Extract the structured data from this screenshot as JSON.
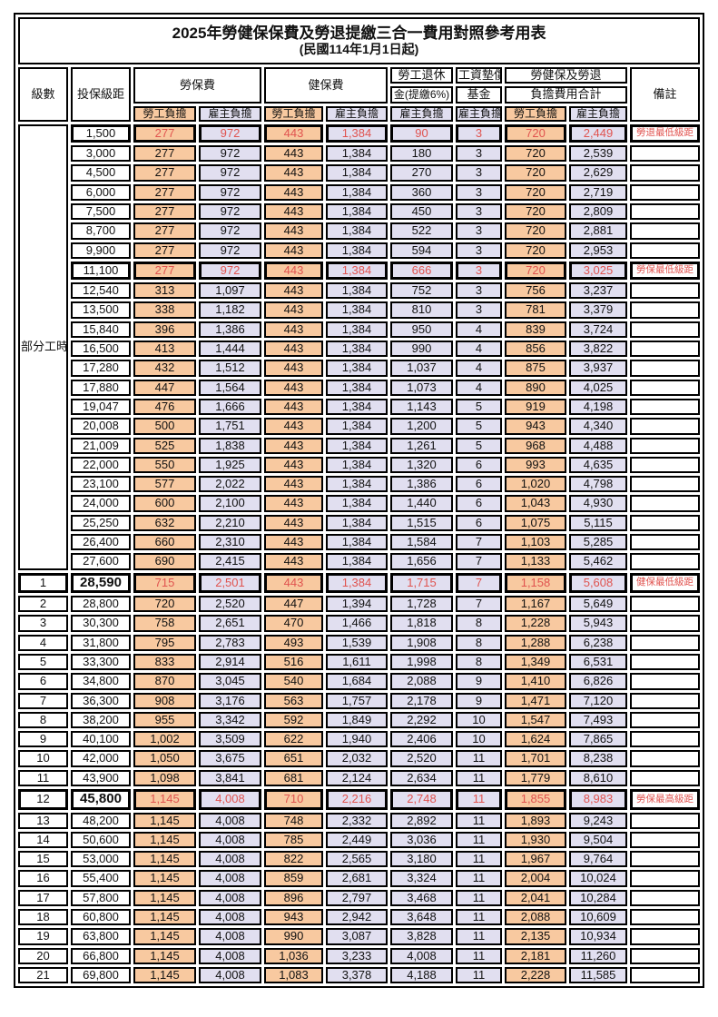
{
  "title": "2025年勞健保保費及勞退提繳三合一費用對照參考用表",
  "subtitle": "(民國114年1月1日起)",
  "header": {
    "level": "級數",
    "bracket": "投保級距",
    "labor_group": "勞保費",
    "health_group": "健保費",
    "pension_line1": "勞工退休",
    "pension_line2": "金(提繳6%)",
    "wage_fund_line1": "工資墊償",
    "wage_fund_line2": "基金",
    "total_line1": "勞健保及勞退",
    "total_line2": "負擔費用合計",
    "remark": "備註",
    "employee_share": "勞工負擔",
    "employer_share": "雇主負擔"
  },
  "part_time_label": "部分工時",
  "colors": {
    "employee_bg": "#F8C9A0",
    "employer_bg": "#E1DFF0",
    "highlight_red": "#E0534F",
    "border": "#000000"
  },
  "row_field_order": [
    "level",
    "bracket",
    "labor_employee",
    "labor_employer",
    "health_employee",
    "health_employer",
    "pension_employer",
    "wage_fund_employer",
    "total_employee",
    "total_employer",
    "remark",
    "flags(r=red,b=bold-bracket)"
  ],
  "rows": [
    [
      "",
      "1,500",
      "277",
      "972",
      "443",
      "1,384",
      "90",
      "3",
      "720",
      "2,449",
      "勞退最低級距",
      "r"
    ],
    [
      "",
      "3,000",
      "277",
      "972",
      "443",
      "1,384",
      "180",
      "3",
      "720",
      "2,539",
      "",
      ""
    ],
    [
      "",
      "4,500",
      "277",
      "972",
      "443",
      "1,384",
      "270",
      "3",
      "720",
      "2,629",
      "",
      ""
    ],
    [
      "",
      "6,000",
      "277",
      "972",
      "443",
      "1,384",
      "360",
      "3",
      "720",
      "2,719",
      "",
      ""
    ],
    [
      "",
      "7,500",
      "277",
      "972",
      "443",
      "1,384",
      "450",
      "3",
      "720",
      "2,809",
      "",
      ""
    ],
    [
      "",
      "8,700",
      "277",
      "972",
      "443",
      "1,384",
      "522",
      "3",
      "720",
      "2,881",
      "",
      ""
    ],
    [
      "",
      "9,900",
      "277",
      "972",
      "443",
      "1,384",
      "594",
      "3",
      "720",
      "2,953",
      "",
      ""
    ],
    [
      "",
      "11,100",
      "277",
      "972",
      "443",
      "1,384",
      "666",
      "3",
      "720",
      "3,025",
      "勞保最低級距",
      "r"
    ],
    [
      "",
      "12,540",
      "313",
      "1,097",
      "443",
      "1,384",
      "752",
      "3",
      "756",
      "3,237",
      "",
      ""
    ],
    [
      "",
      "13,500",
      "338",
      "1,182",
      "443",
      "1,384",
      "810",
      "3",
      "781",
      "3,379",
      "",
      ""
    ],
    [
      "",
      "15,840",
      "396",
      "1,386",
      "443",
      "1,384",
      "950",
      "4",
      "839",
      "3,724",
      "",
      ""
    ],
    [
      "",
      "16,500",
      "413",
      "1,444",
      "443",
      "1,384",
      "990",
      "4",
      "856",
      "3,822",
      "",
      ""
    ],
    [
      "",
      "17,280",
      "432",
      "1,512",
      "443",
      "1,384",
      "1,037",
      "4",
      "875",
      "3,937",
      "",
      ""
    ],
    [
      "",
      "17,880",
      "447",
      "1,564",
      "443",
      "1,384",
      "1,073",
      "4",
      "890",
      "4,025",
      "",
      ""
    ],
    [
      "",
      "19,047",
      "476",
      "1,666",
      "443",
      "1,384",
      "1,143",
      "5",
      "919",
      "4,198",
      "",
      ""
    ],
    [
      "",
      "20,008",
      "500",
      "1,751",
      "443",
      "1,384",
      "1,200",
      "5",
      "943",
      "4,340",
      "",
      ""
    ],
    [
      "",
      "21,009",
      "525",
      "1,838",
      "443",
      "1,384",
      "1,261",
      "5",
      "968",
      "4,488",
      "",
      ""
    ],
    [
      "",
      "22,000",
      "550",
      "1,925",
      "443",
      "1,384",
      "1,320",
      "6",
      "993",
      "4,635",
      "",
      ""
    ],
    [
      "",
      "23,100",
      "577",
      "2,022",
      "443",
      "1,384",
      "1,386",
      "6",
      "1,020",
      "4,798",
      "",
      ""
    ],
    [
      "",
      "24,000",
      "600",
      "2,100",
      "443",
      "1,384",
      "1,440",
      "6",
      "1,043",
      "4,930",
      "",
      ""
    ],
    [
      "",
      "25,250",
      "632",
      "2,210",
      "443",
      "1,384",
      "1,515",
      "6",
      "1,075",
      "5,115",
      "",
      ""
    ],
    [
      "",
      "26,400",
      "660",
      "2,310",
      "443",
      "1,384",
      "1,584",
      "7",
      "1,103",
      "5,285",
      "",
      ""
    ],
    [
      "",
      "27,600",
      "690",
      "2,415",
      "443",
      "1,384",
      "1,656",
      "7",
      "1,133",
      "5,462",
      "",
      ""
    ],
    [
      "1",
      "28,590",
      "715",
      "2,501",
      "443",
      "1,384",
      "1,715",
      "7",
      "1,158",
      "5,608",
      "健保最低級距",
      "rb"
    ],
    [
      "2",
      "28,800",
      "720",
      "2,520",
      "447",
      "1,394",
      "1,728",
      "7",
      "1,167",
      "5,649",
      "",
      ""
    ],
    [
      "3",
      "30,300",
      "758",
      "2,651",
      "470",
      "1,466",
      "1,818",
      "8",
      "1,228",
      "5,943",
      "",
      ""
    ],
    [
      "4",
      "31,800",
      "795",
      "2,783",
      "493",
      "1,539",
      "1,908",
      "8",
      "1,288",
      "6,238",
      "",
      ""
    ],
    [
      "5",
      "33,300",
      "833",
      "2,914",
      "516",
      "1,611",
      "1,998",
      "8",
      "1,349",
      "6,531",
      "",
      ""
    ],
    [
      "6",
      "34,800",
      "870",
      "3,045",
      "540",
      "1,684",
      "2,088",
      "9",
      "1,410",
      "6,826",
      "",
      ""
    ],
    [
      "7",
      "36,300",
      "908",
      "3,176",
      "563",
      "1,757",
      "2,178",
      "9",
      "1,471",
      "7,120",
      "",
      ""
    ],
    [
      "8",
      "38,200",
      "955",
      "3,342",
      "592",
      "1,849",
      "2,292",
      "10",
      "1,547",
      "7,493",
      "",
      ""
    ],
    [
      "9",
      "40,100",
      "1,002",
      "3,509",
      "622",
      "1,940",
      "2,406",
      "10",
      "1,624",
      "7,865",
      "",
      ""
    ],
    [
      "10",
      "42,000",
      "1,050",
      "3,675",
      "651",
      "2,032",
      "2,520",
      "11",
      "1,701",
      "8,238",
      "",
      ""
    ],
    [
      "11",
      "43,900",
      "1,098",
      "3,841",
      "681",
      "2,124",
      "2,634",
      "11",
      "1,779",
      "8,610",
      "",
      ""
    ],
    [
      "12",
      "45,800",
      "1,145",
      "4,008",
      "710",
      "2,216",
      "2,748",
      "11",
      "1,855",
      "8,983",
      "勞保最高級距",
      "rb"
    ],
    [
      "13",
      "48,200",
      "1,145",
      "4,008",
      "748",
      "2,332",
      "2,892",
      "11",
      "1,893",
      "9,243",
      "",
      ""
    ],
    [
      "14",
      "50,600",
      "1,145",
      "4,008",
      "785",
      "2,449",
      "3,036",
      "11",
      "1,930",
      "9,504",
      "",
      ""
    ],
    [
      "15",
      "53,000",
      "1,145",
      "4,008",
      "822",
      "2,565",
      "3,180",
      "11",
      "1,967",
      "9,764",
      "",
      ""
    ],
    [
      "16",
      "55,400",
      "1,145",
      "4,008",
      "859",
      "2,681",
      "3,324",
      "11",
      "2,004",
      "10,024",
      "",
      ""
    ],
    [
      "17",
      "57,800",
      "1,145",
      "4,008",
      "896",
      "2,797",
      "3,468",
      "11",
      "2,041",
      "10,284",
      "",
      ""
    ],
    [
      "18",
      "60,800",
      "1,145",
      "4,008",
      "943",
      "2,942",
      "3,648",
      "11",
      "2,088",
      "10,609",
      "",
      ""
    ],
    [
      "19",
      "63,800",
      "1,145",
      "4,008",
      "990",
      "3,087",
      "3,828",
      "11",
      "2,135",
      "10,934",
      "",
      ""
    ],
    [
      "20",
      "66,800",
      "1,145",
      "4,008",
      "1,036",
      "3,233",
      "4,008",
      "11",
      "2,181",
      "11,260",
      "",
      ""
    ],
    [
      "21",
      "69,800",
      "1,145",
      "4,008",
      "1,083",
      "3,378",
      "4,188",
      "11",
      "2,228",
      "11,585",
      "",
      ""
    ]
  ]
}
